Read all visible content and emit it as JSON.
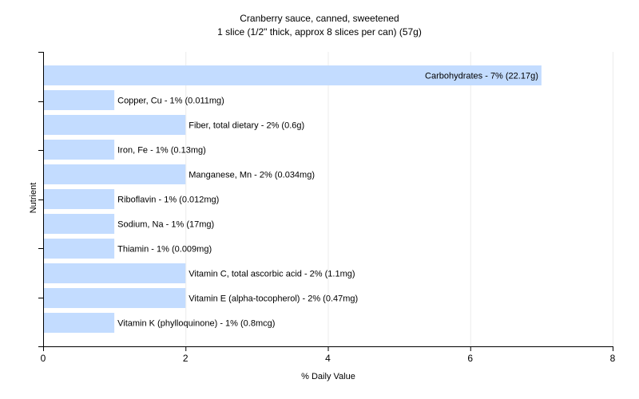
{
  "chart_data": {
    "type": "bar",
    "orientation": "horizontal",
    "title": "Cranberry sauce, canned, sweetened",
    "subtitle": "1 slice (1/2\" thick, approx 8 slices per can) (57g)",
    "xlabel": "% Daily Value",
    "ylabel": "Nutrient",
    "xlim": [
      0,
      8
    ],
    "xticks": [
      0,
      2,
      4,
      6,
      8
    ],
    "grid": true,
    "bar_color": "#c3dcff",
    "categories": [
      "Carbohydrates",
      "Copper, Cu",
      "Fiber, total dietary",
      "Iron, Fe",
      "Manganese, Mn",
      "Riboflavin",
      "Sodium, Na",
      "Thiamin",
      "Vitamin C, total ascorbic acid",
      "Vitamin E (alpha-tocopherol)",
      "Vitamin K (phylloquinone)"
    ],
    "values": [
      7,
      1,
      2,
      1,
      2,
      1,
      1,
      1,
      2,
      2,
      1
    ],
    "labels": [
      "Carbohydrates - 7% (22.17g)",
      "Copper, Cu - 1% (0.011mg)",
      "Fiber, total dietary - 2% (0.6g)",
      "Iron, Fe - 1% (0.13mg)",
      "Manganese, Mn - 2% (0.034mg)",
      "Riboflavin - 1% (0.012mg)",
      "Sodium, Na - 1% (17mg)",
      "Thiamin - 1% (0.009mg)",
      "Vitamin C, total ascorbic acid - 2% (1.1mg)",
      "Vitamin E (alpha-tocopherol) - 2% (0.47mg)",
      "Vitamin K (phylloquinone) - 1% (0.8mcg)"
    ]
  }
}
